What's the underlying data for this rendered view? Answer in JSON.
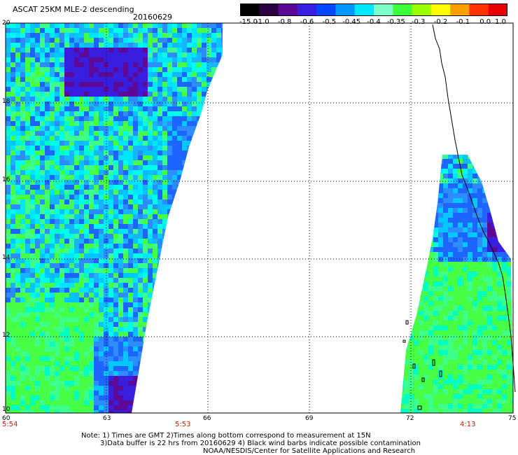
{
  "header": {
    "title": "ASCAT 25KM MLE-2 descending",
    "date": "20160629"
  },
  "colorbar": {
    "labels": [
      "-15.0",
      "-1.0",
      "-0.8",
      "-0.6",
      "-0.5",
      "-0.45",
      "-0.4",
      "-0.35",
      "-0.3",
      "-0.2",
      "-0.1",
      "0.0",
      "1.0"
    ],
    "colors": [
      "#000000",
      "#2a0040",
      "#5a0a96",
      "#3a1ee0",
      "#0046ff",
      "#0096ff",
      "#00e6ff",
      "#7dffc8",
      "#3cff3c",
      "#9bff00",
      "#ffff00",
      "#ffa000",
      "#ff3200",
      "#e60000"
    ]
  },
  "axes": {
    "lat_labels": [
      "20",
      "18",
      "16",
      "14",
      "12",
      "10"
    ],
    "lon_labels": [
      "60",
      "63",
      "66",
      "69",
      "72",
      "75"
    ]
  },
  "times": [
    "5:54",
    "5:53",
    "4:13"
  ],
  "footer": {
    "line1": "Note: 1) Times are GMT 2)Times along bottom correspond to measurement at 15N",
    "line2": "3)Data buffer is 22 hrs from 20160629 4) Black wind barbs indicate possible contamination",
    "line3": "NOAA/NESDIS/Center for Satellite Applications and Research"
  }
}
